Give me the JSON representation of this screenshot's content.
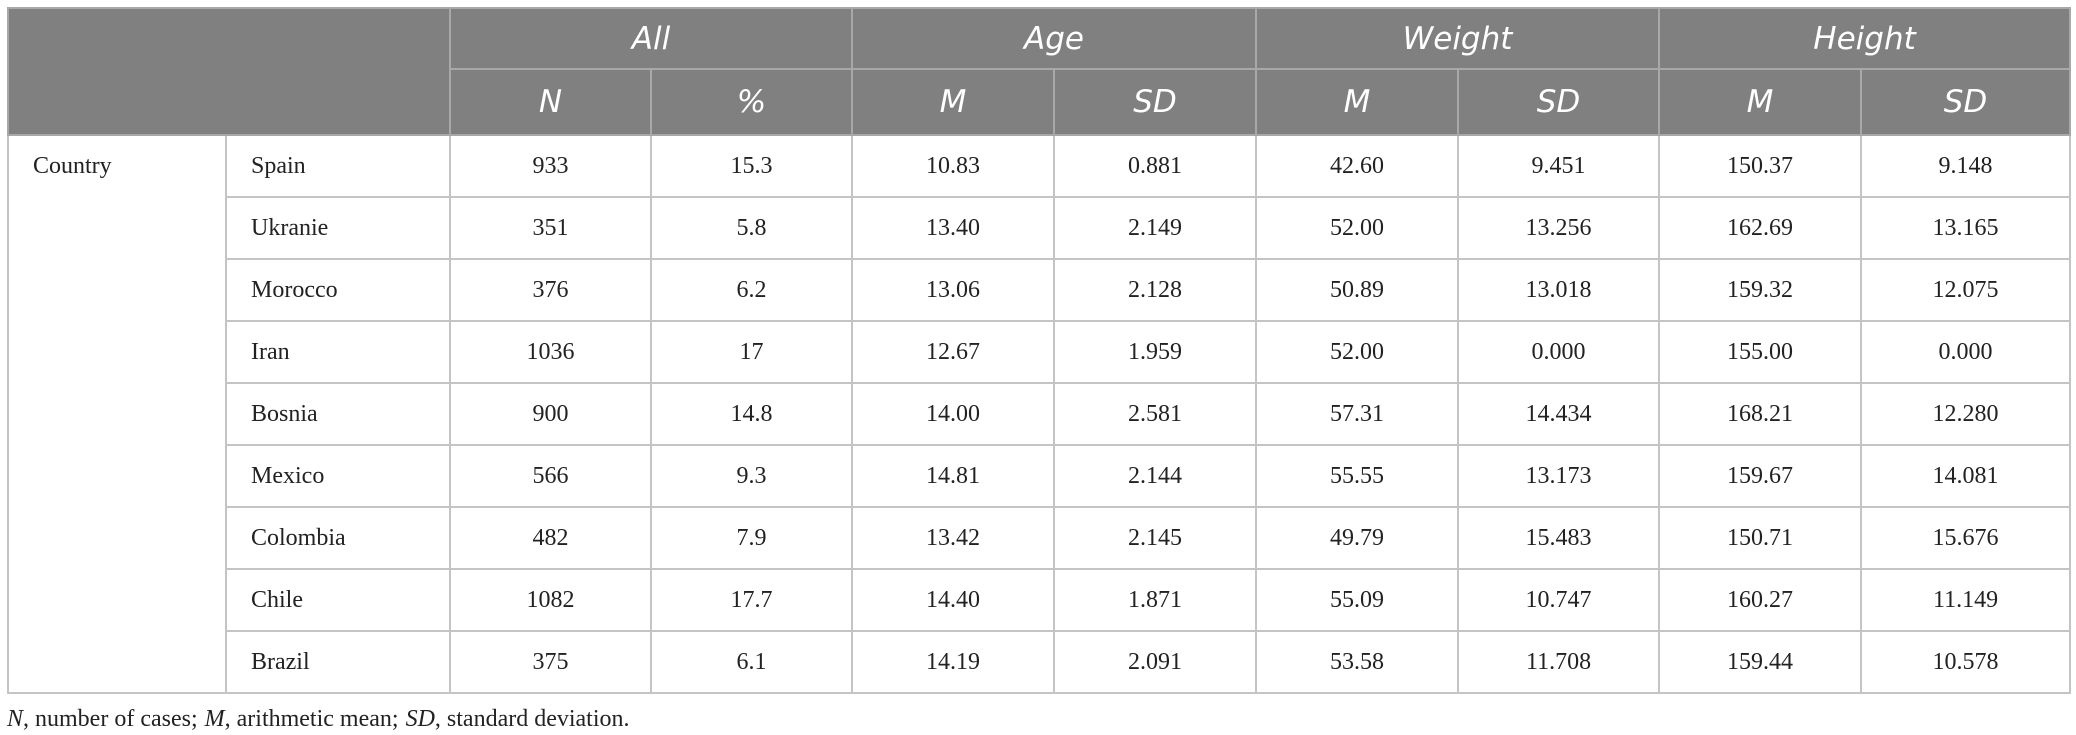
{
  "table": {
    "header_groups": [
      "All",
      "Age",
      "Weight",
      "Height"
    ],
    "subheaders": [
      "N",
      "%",
      "M",
      "SD",
      "M",
      "SD",
      "M",
      "SD"
    ],
    "row_group": "Country",
    "rows": [
      [
        "Spain",
        "933",
        "15.3",
        "10.83",
        "0.881",
        "42.60",
        "9.451",
        "150.37",
        "9.148"
      ],
      [
        "Ukranie",
        "351",
        "5.8",
        "13.40",
        "2.149",
        "52.00",
        "13.256",
        "162.69",
        "13.165"
      ],
      [
        "Morocco",
        "376",
        "6.2",
        "13.06",
        "2.128",
        "50.89",
        "13.018",
        "159.32",
        "12.075"
      ],
      [
        "Iran",
        "1036",
        "17",
        "12.67",
        "1.959",
        "52.00",
        "0.000",
        "155.00",
        "0.000"
      ],
      [
        "Bosnia",
        "900",
        "14.8",
        "14.00",
        "2.581",
        "57.31",
        "14.434",
        "168.21",
        "12.280"
      ],
      [
        "Mexico",
        "566",
        "9.3",
        "14.81",
        "2.144",
        "55.55",
        "13.173",
        "159.67",
        "14.081"
      ],
      [
        "Colombia",
        "482",
        "7.9",
        "13.42",
        "2.145",
        "49.79",
        "15.483",
        "150.71",
        "15.676"
      ],
      [
        "Chile",
        "1082",
        "17.7",
        "14.40",
        "1.871",
        "55.09",
        "10.747",
        "160.27",
        "11.149"
      ],
      [
        "Brazil",
        "375",
        "6.1",
        "14.19",
        "2.091",
        "53.58",
        "11.708",
        "159.44",
        "10.578"
      ]
    ]
  },
  "footnote": [
    {
      "abbr": "N",
      "text": ", number of cases;"
    },
    {
      "abbr": "M",
      "text": ", arithmetic mean;"
    },
    {
      "abbr": "SD",
      "text": ", standard deviation."
    }
  ]
}
